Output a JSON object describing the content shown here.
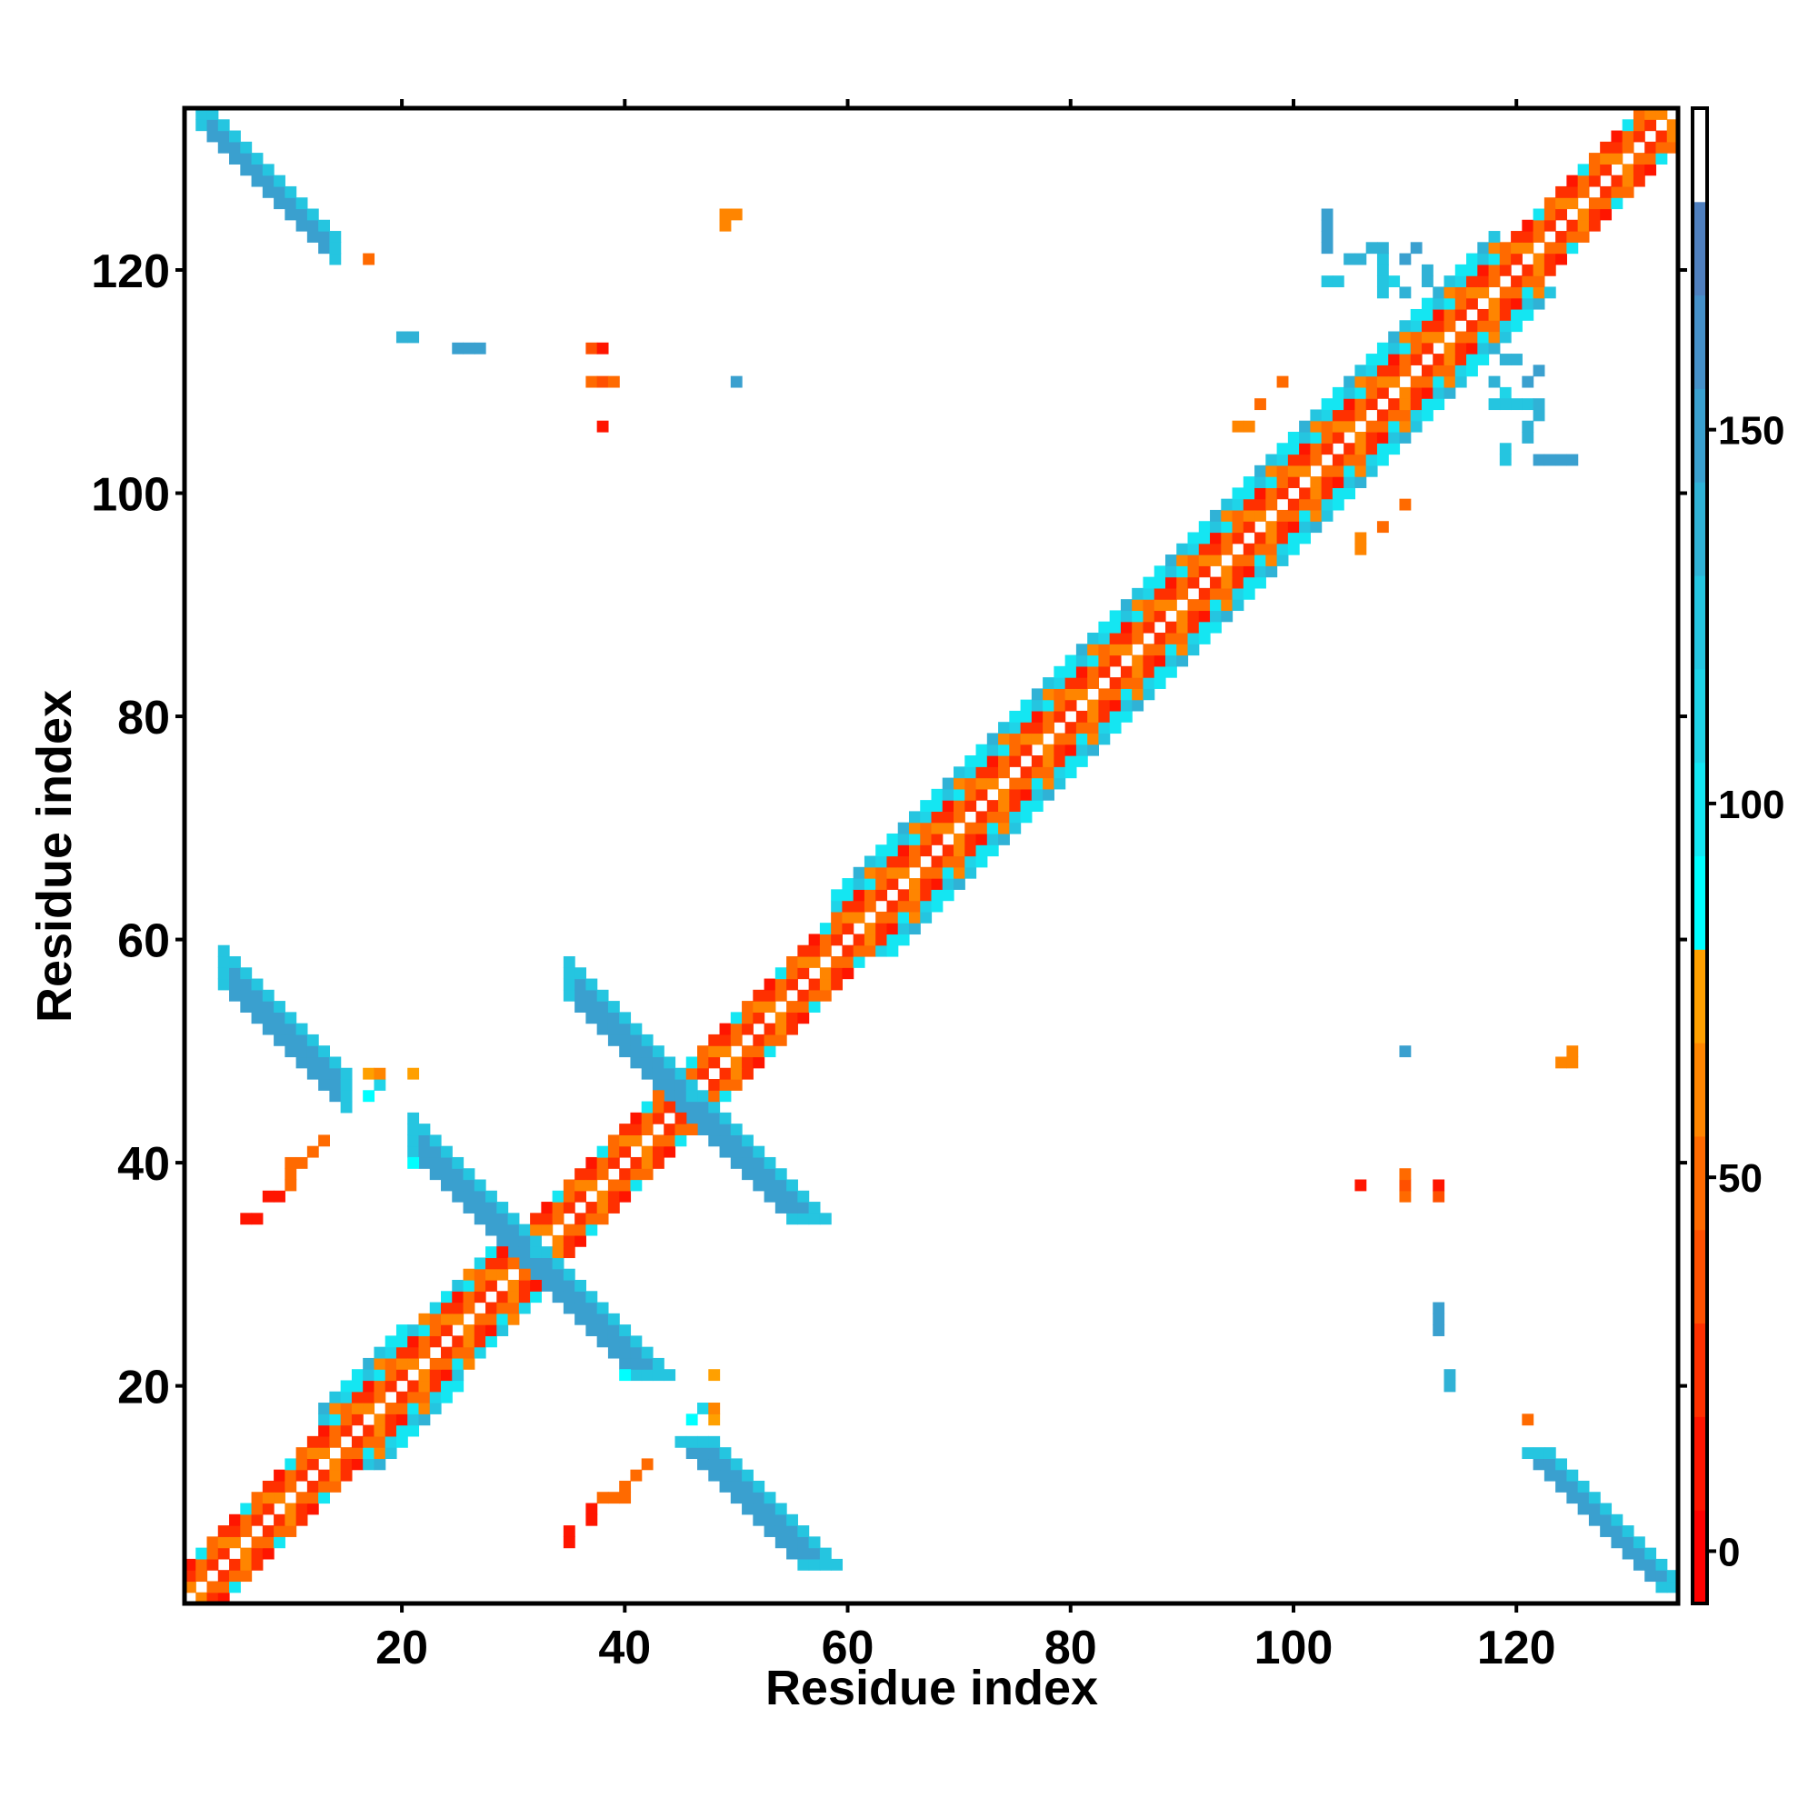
{
  "chart_data": {
    "type": "heatmap",
    "title": "",
    "xlabel": "Residue index",
    "ylabel": "Residue index",
    "xlim": [
      0.5,
      134.5
    ],
    "ylim": [
      0.5,
      134.5
    ],
    "xticks": [
      20,
      40,
      60,
      80,
      100,
      120
    ],
    "yticks": [
      20,
      40,
      60,
      80,
      100,
      120
    ],
    "xtick_labels": [
      "20",
      "40",
      "60",
      "80",
      "100",
      "120"
    ],
    "ytick_labels": [
      "20",
      "40",
      "60",
      "80",
      "100",
      "120"
    ],
    "symmetric": true,
    "colorbar": {
      "range": [
        -7,
        193
      ],
      "ticks": [
        0,
        50,
        100,
        150
      ],
      "tick_labels": [
        "0",
        "50",
        "100",
        "150"
      ],
      "step": 12.5,
      "colors": [
        "#ff0000",
        "#ff1500",
        "#ff3000",
        "#ff5000",
        "#ff6a00",
        "#ff8500",
        "#ffa000",
        "#00ffff",
        "#14e6f2",
        "#1fd4e8",
        "#25c5e0",
        "#30b2d6",
        "#3aa0cf",
        "#4590c8",
        "#4f7fbe",
        "#ffffff"
      ]
    },
    "diagonal_band": [
      {
        "from": 1,
        "to": 12,
        "max_sep": 3
      },
      {
        "from": 13,
        "to": 20,
        "max_sep": 5
      },
      {
        "from": 21,
        "to": 30,
        "max_sep": 4
      },
      {
        "from": 31,
        "to": 58,
        "max_sep": 3
      },
      {
        "from": 59,
        "to": 80,
        "max_sep": 5
      },
      {
        "from": 81,
        "to": 118,
        "max_sep": 5
      },
      {
        "from": 119,
        "to": 134,
        "max_sep": 3
      }
    ],
    "diagonal_values_by_sep": {
      "1": [
        30,
        45,
        60,
        20
      ],
      "2": [
        55,
        20,
        65,
        45
      ],
      "3": [
        10,
        25,
        45,
        100
      ],
      "4": [
        95,
        110,
        60,
        120
      ],
      "5": [
        100,
        120,
        140,
        95
      ]
    },
    "antiparallel_pairs": [
      {
        "x_from": 2,
        "x_to": 14,
        "sum": 135.5,
        "core_value": 155,
        "edge_value": 120
      },
      {
        "x_from": 4,
        "x_to": 15,
        "sum": 61,
        "core_value": 155,
        "edge_value": 118
      },
      {
        "x_from": 21,
        "x_to": 32,
        "sum": 63,
        "core_value": 155,
        "edge_value": 120
      },
      {
        "x_from": 35,
        "x_to": 46,
        "sum": 91,
        "core_value": 155,
        "edge_value": 125
      }
    ],
    "isolated_contacts": [
      [
        17,
        121,
        55
      ],
      [
        20,
        114,
        140
      ],
      [
        21,
        114,
        140
      ],
      [
        25,
        113,
        155
      ],
      [
        26,
        113,
        155
      ],
      [
        27,
        113,
        155
      ],
      [
        37,
        113,
        40
      ],
      [
        38,
        113,
        10
      ],
      [
        37,
        110,
        45
      ],
      [
        38,
        110,
        40
      ],
      [
        39,
        110,
        45
      ],
      [
        38,
        106,
        10
      ],
      [
        50,
        110,
        145
      ],
      [
        49,
        125,
        65
      ],
      [
        50,
        125,
        65
      ],
      [
        49,
        124,
        60
      ],
      [
        7,
        35,
        10
      ],
      [
        9,
        37,
        10
      ],
      [
        10,
        39,
        45
      ],
      [
        10,
        40,
        45
      ],
      [
        11,
        40,
        45
      ],
      [
        12,
        41,
        45
      ],
      [
        13,
        42,
        55
      ],
      [
        15,
        45,
        60
      ],
      [
        17,
        48,
        70
      ],
      [
        21,
        48,
        70
      ],
      [
        17,
        46,
        90
      ],
      [
        21,
        41,
        85
      ],
      [
        40,
        21,
        85
      ],
      [
        48,
        21,
        70
      ],
      [
        42,
        22,
        100
      ],
      [
        35,
        6,
        10
      ],
      [
        37,
        8,
        10
      ],
      [
        38,
        10,
        45
      ],
      [
        39,
        10,
        45
      ],
      [
        40,
        11,
        45
      ],
      [
        41,
        12,
        45
      ],
      [
        42,
        13,
        45
      ],
      [
        47,
        18,
        110
      ],
      [
        48,
        18,
        65
      ],
      [
        46,
        15,
        55
      ],
      [
        103,
        125,
        155
      ],
      [
        103,
        124,
        155
      ],
      [
        105,
        121,
        140
      ],
      [
        106,
        121,
        140
      ],
      [
        108,
        121,
        130
      ],
      [
        110,
        121,
        150
      ],
      [
        109,
        119,
        110
      ],
      [
        108,
        120,
        120
      ],
      [
        110,
        118,
        140
      ],
      [
        103,
        119,
        130
      ],
      [
        104,
        119,
        130
      ],
      [
        97,
        108,
        55
      ],
      [
        95,
        106,
        65
      ],
      [
        106,
        96,
        65
      ],
      [
        110,
        99,
        55
      ],
      [
        119,
        112,
        140
      ],
      [
        120,
        112,
        140
      ],
      [
        122,
        111,
        150
      ],
      [
        120,
        108,
        120
      ],
      [
        119,
        108,
        120
      ],
      [
        118,
        108,
        120
      ],
      [
        122,
        108,
        140
      ],
      [
        122,
        107,
        140
      ],
      [
        119,
        104,
        150
      ],
      [
        122,
        103,
        155
      ],
      [
        123,
        103,
        155
      ],
      [
        124,
        103,
        155
      ]
    ]
  }
}
